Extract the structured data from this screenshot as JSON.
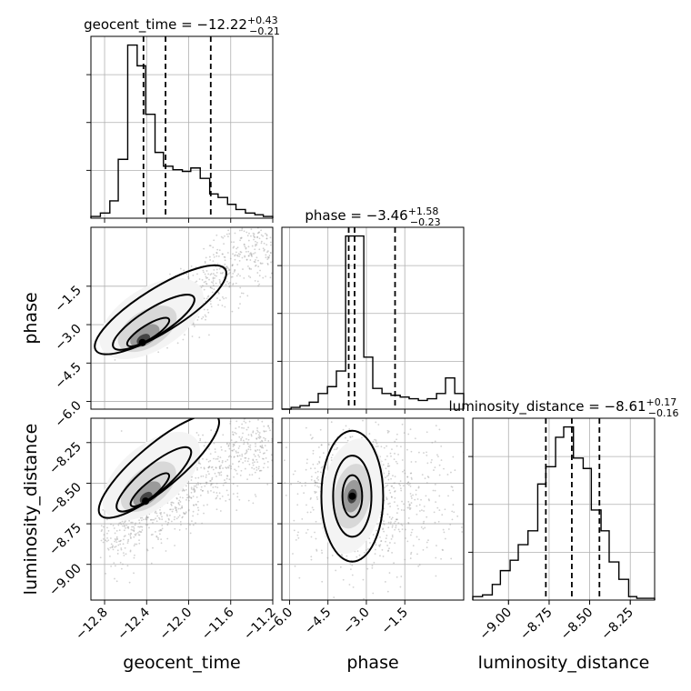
{
  "chart_data": {
    "type": "corner",
    "parameters": [
      "geocent_time",
      "phase",
      "luminosity_distance"
    ],
    "titles": [
      {
        "name": "geocent_time",
        "median": "-12.22",
        "plus": "+0.43",
        "minus": "-0.21",
        "quantiles": [
          -12.43,
          -12.22,
          -11.79
        ]
      },
      {
        "name": "phase",
        "median": "-3.46",
        "plus": "+1.58",
        "minus": "-0.23",
        "quantiles": [
          -3.69,
          -3.46,
          -1.88
        ]
      },
      {
        "name": "luminosity_distance",
        "median": "-8.61",
        "plus": "+0.17",
        "minus": "-0.16",
        "quantiles": [
          -8.77,
          -8.61,
          -8.44
        ]
      }
    ],
    "ranges": {
      "geocent_time": [
        -12.93,
        -11.2
      ],
      "phase": [
        -6.3,
        0.8
      ],
      "luminosity_distance": [
        -9.22,
        -8.1
      ]
    },
    "ticks": {
      "geocent_time": [
        "-12.8",
        "-12.4",
        "-12.0",
        "-11.6",
        "-11.2"
      ],
      "phase": [
        "-6.0",
        "-4.5",
        "-3.0",
        "-1.5"
      ],
      "phase_y": [
        "-1.5",
        "-3.0",
        "-4.5",
        "-6.0"
      ],
      "luminosity_distance": [
        "-9.00",
        "-8.75",
        "-8.50",
        "-8.25"
      ],
      "luminosity_distance_y": [
        "-8.25",
        "-8.50",
        "-8.75",
        "-9.00"
      ]
    },
    "marginals": {
      "geocent_time": {
        "edges": [
          -12.93,
          -12.84,
          -12.75,
          -12.67,
          -12.58,
          -12.49,
          -12.41,
          -12.32,
          -12.24,
          -12.15,
          -12.06,
          -11.98,
          -11.89,
          -11.8,
          -11.72,
          -11.63,
          -11.55,
          -11.46,
          -11.37,
          -11.29,
          -11.2
        ],
        "counts": [
          1,
          3,
          10,
          34,
          100,
          88,
          60,
          38,
          30,
          28,
          27,
          29,
          23,
          14,
          12,
          8,
          5,
          3,
          2,
          1
        ]
      },
      "phase": {
        "edges": [
          -6.3,
          -5.94,
          -5.59,
          -5.23,
          -4.88,
          -4.52,
          -4.17,
          -3.81,
          -3.46,
          -3.1,
          -2.75,
          -2.39,
          -2.04,
          -1.68,
          -1.33,
          -0.97,
          -0.62,
          -0.26,
          0.09,
          0.45,
          0.8
        ],
        "counts": [
          0,
          1,
          2,
          4,
          9,
          13,
          22,
          100,
          100,
          30,
          12,
          9,
          8,
          7,
          6,
          5,
          6,
          9,
          18,
          9
        ]
      },
      "luminosity_distance": {
        "edges": [
          -9.22,
          -9.16,
          -9.1,
          -9.05,
          -8.99,
          -8.94,
          -8.88,
          -8.82,
          -8.77,
          -8.71,
          -8.66,
          -8.6,
          -8.54,
          -8.49,
          -8.43,
          -8.38,
          -8.32,
          -8.26,
          -8.21,
          -8.15,
          -8.1
        ],
        "counts": [
          2,
          3,
          9,
          17,
          23,
          32,
          40,
          67,
          77,
          94,
          100,
          82,
          76,
          52,
          40,
          22,
          12,
          2,
          1,
          1
        ]
      }
    },
    "peaks": [
      {
        "x": "geocent_time",
        "y": "phase",
        "x_value": -12.44,
        "y_value": -3.7
      },
      {
        "x": "geocent_time",
        "y": "luminosity_distance",
        "x_value": -12.41,
        "y_value": -8.61
      },
      {
        "x": "phase",
        "y": "luminosity_distance",
        "x_value": -3.55,
        "y_value": -8.58
      }
    ],
    "grid": true,
    "xlabel_rotation": -45
  }
}
